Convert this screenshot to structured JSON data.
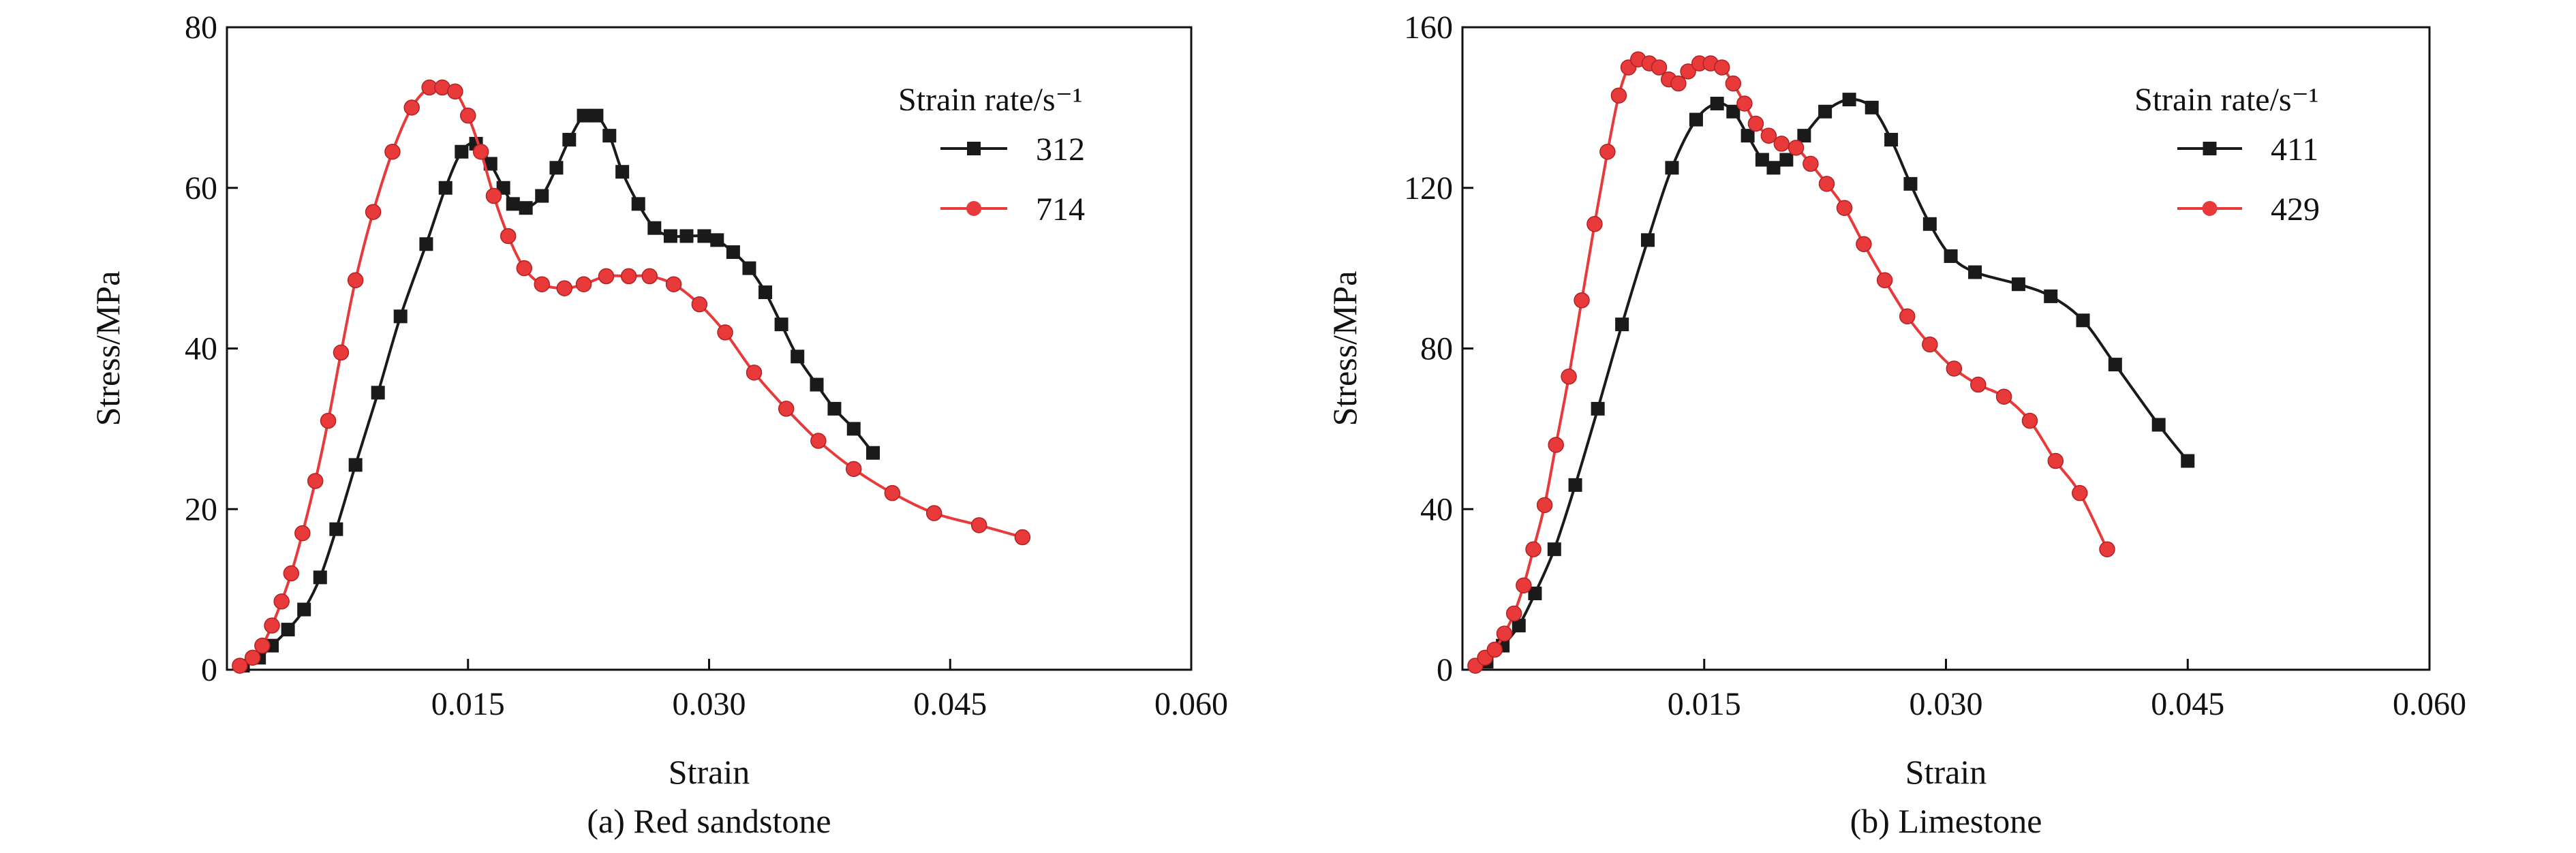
{
  "chart_data": [
    {
      "id": "panel-a",
      "type": "line",
      "caption": "(a) Red sandstone",
      "xlabel": "Strain",
      "ylabel": "Stress/MPa",
      "xlim": [
        0,
        0.06
      ],
      "ylim": [
        0,
        80
      ],
      "xticks": [
        0.015,
        0.03,
        0.045,
        0.06
      ],
      "xtick_labels": [
        "0.015",
        "0.030",
        "0.045",
        "0.060"
      ],
      "yticks": [
        0,
        20,
        40,
        60,
        80
      ],
      "ytick_labels": [
        "0",
        "20",
        "40",
        "60",
        "80"
      ],
      "legend": {
        "title": "Strain rate/s⁻¹",
        "position": "top-right"
      },
      "grid": false,
      "series": [
        {
          "name": "312",
          "marker": "square",
          "color": "#1a1a1a",
          "x": [
            0.001,
            0.002,
            0.0028,
            0.0038,
            0.0048,
            0.0058,
            0.0068,
            0.008,
            0.0094,
            0.0108,
            0.0124,
            0.0136,
            0.0146,
            0.0155,
            0.0164,
            0.0172,
            0.0178,
            0.0186,
            0.0196,
            0.0205,
            0.0213,
            0.0222,
            0.023,
            0.0238,
            0.0246,
            0.0256,
            0.0266,
            0.0276,
            0.0286,
            0.0297,
            0.0305,
            0.0315,
            0.0325,
            0.0335,
            0.0345,
            0.0355,
            0.0367,
            0.0378,
            0.039,
            0.0402
          ],
          "y": [
            0.5,
            1.5,
            3.0,
            5.0,
            7.5,
            11.5,
            17.5,
            25.5,
            34.5,
            44.0,
            53.0,
            60.0,
            64.5,
            65.5,
            63.0,
            60.0,
            58.0,
            57.5,
            59.0,
            62.5,
            66.0,
            69.0,
            69.0,
            66.5,
            62.0,
            58.0,
            55.0,
            54.0,
            54.0,
            54.0,
            53.5,
            52.0,
            50.0,
            47.0,
            43.0,
            39.0,
            35.5,
            32.5,
            30.0,
            27.0
          ]
        },
        {
          "name": "714",
          "marker": "circle",
          "color": "#e8393b",
          "x": [
            0.0008,
            0.0016,
            0.0022,
            0.0028,
            0.0034,
            0.004,
            0.0047,
            0.0055,
            0.0063,
            0.0071,
            0.008,
            0.0091,
            0.0103,
            0.0115,
            0.0126,
            0.0134,
            0.0142,
            0.015,
            0.0158,
            0.0166,
            0.0175,
            0.0185,
            0.0196,
            0.021,
            0.0222,
            0.0236,
            0.025,
            0.0263,
            0.0278,
            0.0294,
            0.031,
            0.0328,
            0.0348,
            0.0368,
            0.039,
            0.0414,
            0.044,
            0.0468,
            0.0495
          ],
          "y": [
            0.5,
            1.5,
            3.0,
            5.5,
            8.5,
            12.0,
            17.0,
            23.5,
            31.0,
            39.5,
            48.5,
            57.0,
            64.5,
            70.0,
            72.5,
            72.5,
            72.0,
            69.0,
            64.5,
            59.0,
            54.0,
            50.0,
            48.0,
            47.5,
            48.0,
            49.0,
            49.0,
            49.0,
            48.0,
            45.5,
            42.0,
            37.0,
            32.5,
            28.5,
            25.0,
            22.0,
            19.5,
            18.0,
            16.5
          ]
        }
      ]
    },
    {
      "id": "panel-b",
      "type": "line",
      "caption": "(b) Limestone",
      "xlabel": "Strain",
      "ylabel": "Stress/MPa",
      "xlim": [
        0,
        0.06
      ],
      "ylim": [
        0,
        160
      ],
      "xticks": [
        0.015,
        0.03,
        0.045,
        0.06
      ],
      "xtick_labels": [
        "0.015",
        "0.030",
        "0.045",
        "0.060"
      ],
      "yticks": [
        0,
        40,
        80,
        120,
        160
      ],
      "ytick_labels": [
        "0",
        "40",
        "80",
        "120",
        "160"
      ],
      "legend": {
        "title": "Strain rate/s⁻¹",
        "position": "top-right"
      },
      "grid": false,
      "series": [
        {
          "name": "411",
          "marker": "square",
          "color": "#1a1a1a",
          "x": [
            0.0015,
            0.0025,
            0.0035,
            0.0045,
            0.0057,
            0.007,
            0.0084,
            0.0099,
            0.0115,
            0.013,
            0.0145,
            0.0158,
            0.0168,
            0.0177,
            0.0186,
            0.0193,
            0.0201,
            0.0212,
            0.0225,
            0.024,
            0.0254,
            0.0266,
            0.0278,
            0.029,
            0.0303,
            0.0318,
            0.0345,
            0.0365,
            0.0385,
            0.0405,
            0.0432,
            0.045
          ],
          "y": [
            2,
            6,
            11,
            19,
            30,
            46,
            65,
            86,
            107,
            125,
            137,
            141,
            139,
            133,
            127,
            125,
            127,
            133,
            139,
            142,
            140,
            132,
            121,
            111,
            103,
            99,
            96,
            93,
            87,
            76,
            61,
            52
          ]
        },
        {
          "name": "429",
          "marker": "circle",
          "color": "#e8393b",
          "x": [
            0.0008,
            0.0014,
            0.002,
            0.0026,
            0.0032,
            0.0038,
            0.0044,
            0.0051,
            0.0058,
            0.0066,
            0.0074,
            0.0082,
            0.009,
            0.0097,
            0.0103,
            0.0109,
            0.0116,
            0.0122,
            0.0128,
            0.0134,
            0.014,
            0.0147,
            0.0154,
            0.0161,
            0.0168,
            0.0175,
            0.0182,
            0.019,
            0.0198,
            0.0207,
            0.0216,
            0.0226,
            0.0237,
            0.0249,
            0.0262,
            0.0276,
            0.029,
            0.0305,
            0.032,
            0.0336,
            0.0352,
            0.0368,
            0.0383,
            0.04
          ],
          "y": [
            1,
            3,
            5,
            9,
            14,
            21,
            30,
            41,
            56,
            73,
            92,
            111,
            129,
            143,
            150,
            152,
            151,
            150,
            147,
            146,
            149,
            151,
            151,
            150,
            146,
            141,
            136,
            133,
            131,
            130,
            126,
            121,
            115,
            106,
            97,
            88,
            81,
            75,
            71,
            68,
            62,
            52,
            44,
            30
          ]
        }
      ]
    }
  ]
}
